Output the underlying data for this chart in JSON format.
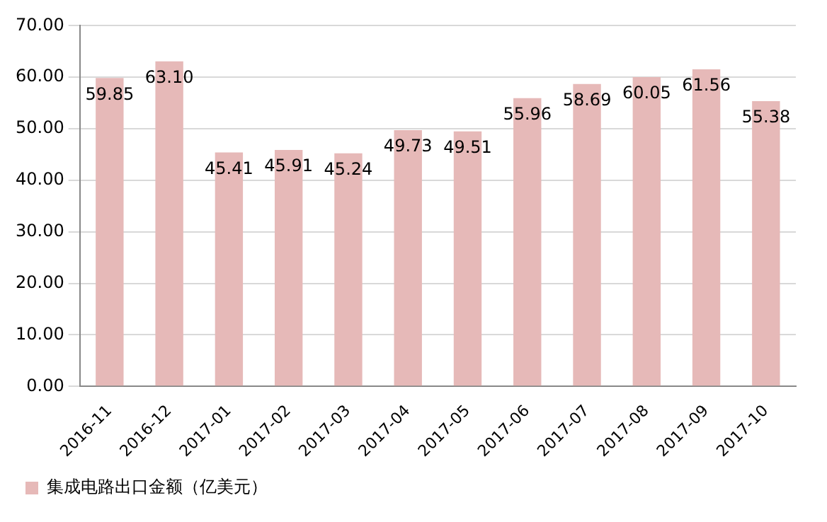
{
  "chart_data": {
    "type": "bar",
    "categories": [
      "2016-11",
      "2016-12",
      "2017-01",
      "2017-02",
      "2017-03",
      "2017-04",
      "2017-05",
      "2017-06",
      "2017-07",
      "2017-08",
      "2017-09",
      "2017-10"
    ],
    "series": [
      {
        "name": "集成电路出口金额（亿美元）",
        "color": "#e6b9b8",
        "values": [
          59.85,
          63.1,
          45.41,
          45.91,
          45.24,
          49.73,
          49.51,
          55.96,
          58.69,
          60.05,
          61.56,
          55.38
        ],
        "value_labels": [
          "59.85",
          "63.10",
          "45.41",
          "45.91",
          "45.24",
          "49.73",
          "49.51",
          "55.96",
          "58.69",
          "60.05",
          "61.56",
          "55.38"
        ]
      }
    ],
    "ylim": [
      0,
      70
    ],
    "yticks": [
      {
        "value": 0,
        "label": "0.00"
      },
      {
        "value": 10,
        "label": "10.00"
      },
      {
        "value": 20,
        "label": "20.00"
      },
      {
        "value": 30,
        "label": "30.00"
      },
      {
        "value": 40,
        "label": "40.00"
      },
      {
        "value": 50,
        "label": "50.00"
      },
      {
        "value": 60,
        "label": "60.00"
      },
      {
        "value": 70,
        "label": "70.00"
      }
    ],
    "grid": "y",
    "legend": "bottom"
  }
}
